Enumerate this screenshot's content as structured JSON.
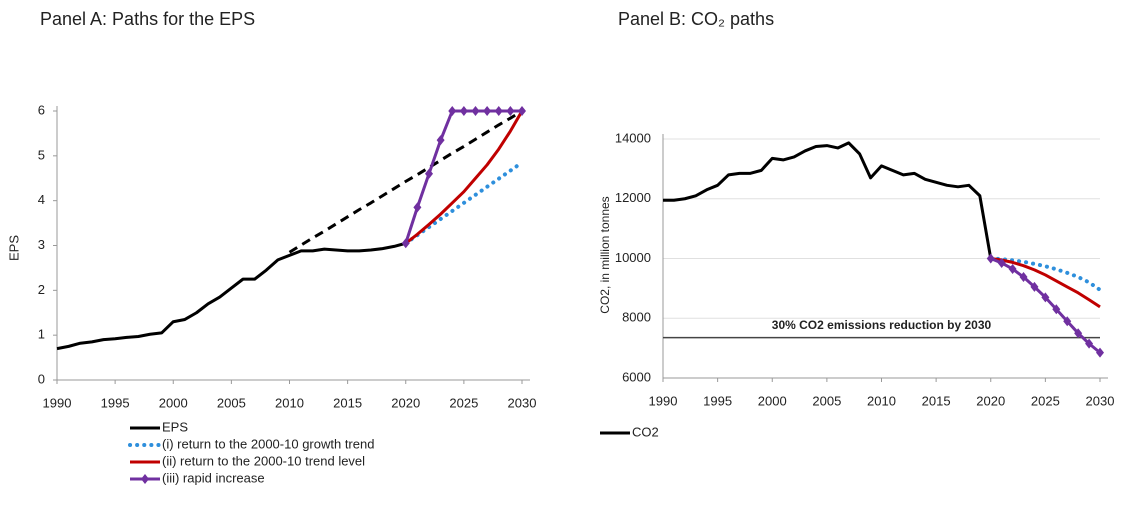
{
  "chart_data": [
    {
      "type": "line",
      "title": "Panel A: Paths for the EPS",
      "ylabel": "EPS",
      "grid": false,
      "legend": "below",
      "x": [
        1990,
        1991,
        1992,
        1993,
        1994,
        1995,
        1996,
        1997,
        1998,
        1999,
        2000,
        2001,
        2002,
        2003,
        2004,
        2005,
        2006,
        2007,
        2008,
        2009,
        2010,
        2011,
        2012,
        2013,
        2014,
        2015,
        2016,
        2017,
        2018,
        2019,
        2020,
        2021,
        2022,
        2023,
        2024,
        2025,
        2026,
        2027,
        2028,
        2029,
        2030
      ],
      "xlim": [
        1990,
        2030
      ],
      "xticks": [
        1990,
        1995,
        2000,
        2005,
        2010,
        2015,
        2020,
        2025,
        2030
      ],
      "ylim": [
        0,
        6
      ],
      "yticks": [
        0,
        1,
        2,
        3,
        4,
        5,
        6
      ],
      "series": [
        {
          "name": "EPS",
          "color": "#000000",
          "dash": "solid",
          "values": [
            0.7,
            0.75,
            0.82,
            0.85,
            0.9,
            0.92,
            0.95,
            0.97,
            1.02,
            1.05,
            1.3,
            1.35,
            1.5,
            1.7,
            1.85,
            2.05,
            2.25,
            2.25,
            2.45,
            2.68,
            2.78,
            2.88,
            2.88,
            2.92,
            2.9,
            2.88,
            2.88,
            2.9,
            2.93,
            2.98,
            3.05,
            null,
            null,
            null,
            null,
            null,
            null,
            null,
            null,
            null,
            null
          ]
        },
        {
          "color": "#000000",
          "dash": "dashed",
          "values": [
            null,
            null,
            null,
            null,
            null,
            null,
            null,
            null,
            null,
            null,
            null,
            null,
            null,
            null,
            null,
            null,
            null,
            null,
            null,
            null,
            2.85,
            3.01,
            3.17,
            3.32,
            3.48,
            3.64,
            3.8,
            3.95,
            4.11,
            4.27,
            4.43,
            4.58,
            4.74,
            4.9,
            5.06,
            5.21,
            5.37,
            5.53,
            5.69,
            5.84,
            6.0
          ]
        },
        {
          "name": "(i) return to the 2000-10 growth trend",
          "color": "#2e8fdc",
          "dash": "dotted",
          "values": [
            null,
            null,
            null,
            null,
            null,
            null,
            null,
            null,
            null,
            null,
            null,
            null,
            null,
            null,
            null,
            null,
            null,
            null,
            null,
            null,
            null,
            null,
            null,
            null,
            null,
            null,
            null,
            null,
            null,
            null,
            3.05,
            3.23,
            3.41,
            3.59,
            3.77,
            3.95,
            4.13,
            4.31,
            4.49,
            4.67,
            4.85
          ]
        },
        {
          "name": "(ii) return to the 2000-10 trend level",
          "color": "#c00000",
          "dash": "solid",
          "values": [
            null,
            null,
            null,
            null,
            null,
            null,
            null,
            null,
            null,
            null,
            null,
            null,
            null,
            null,
            null,
            null,
            null,
            null,
            null,
            null,
            null,
            null,
            null,
            null,
            null,
            null,
            null,
            null,
            null,
            null,
            3.05,
            3.25,
            3.47,
            3.7,
            3.95,
            4.2,
            4.5,
            4.8,
            5.15,
            5.55,
            6.0
          ]
        },
        {
          "name": "(iii) rapid increase",
          "color": "#7030a0",
          "dash": "solid",
          "marker": "diamond",
          "values": [
            null,
            null,
            null,
            null,
            null,
            null,
            null,
            null,
            null,
            null,
            null,
            null,
            null,
            null,
            null,
            null,
            null,
            null,
            null,
            null,
            null,
            null,
            null,
            null,
            null,
            null,
            null,
            null,
            null,
            null,
            3.05,
            3.85,
            4.6,
            5.35,
            6.0,
            6.0,
            6.0,
            6.0,
            6.0,
            6.0,
            6.0
          ]
        }
      ]
    },
    {
      "type": "line",
      "title": "Panel B: CO₂ paths",
      "ylabel": "CO2, in million tonnes",
      "grid": true,
      "legend": "below",
      "x": [
        1990,
        1991,
        1992,
        1993,
        1994,
        1995,
        1996,
        1997,
        1998,
        1999,
        2000,
        2001,
        2002,
        2003,
        2004,
        2005,
        2006,
        2007,
        2008,
        2009,
        2010,
        2011,
        2012,
        2013,
        2014,
        2015,
        2016,
        2017,
        2018,
        2019,
        2020,
        2021,
        2022,
        2023,
        2024,
        2025,
        2026,
        2027,
        2028,
        2029,
        2030
      ],
      "xlim": [
        1990,
        2030
      ],
      "xticks": [
        1990,
        1995,
        2000,
        2005,
        2010,
        2015,
        2020,
        2025,
        2030
      ],
      "ylim": [
        6000,
        14000
      ],
      "yticks": [
        6000,
        8000,
        10000,
        12000,
        14000
      ],
      "hline": {
        "value": 7350,
        "label": "30% CO2 emissions reduction by 2030"
      },
      "series": [
        {
          "name": "CO2",
          "color": "#000000",
          "dash": "solid",
          "values": [
            11950,
            11950,
            12000,
            12100,
            12300,
            12450,
            12800,
            12850,
            12850,
            12950,
            13350,
            13300,
            13400,
            13600,
            13750,
            13780,
            13700,
            13870,
            13500,
            12700,
            13100,
            12950,
            12800,
            12850,
            12650,
            12550,
            12450,
            12400,
            12450,
            12100,
            10000,
            null,
            null,
            null,
            null,
            null,
            null,
            null,
            null,
            null,
            null
          ]
        },
        {
          "color": "#2e8fdc",
          "dash": "dotted",
          "values": [
            null,
            null,
            null,
            null,
            null,
            null,
            null,
            null,
            null,
            null,
            null,
            null,
            null,
            null,
            null,
            null,
            null,
            null,
            null,
            null,
            null,
            null,
            null,
            null,
            null,
            null,
            null,
            null,
            null,
            null,
            10000,
            9980,
            9940,
            9890,
            9820,
            9740,
            9640,
            9520,
            9380,
            9200,
            8950
          ]
        },
        {
          "color": "#c00000",
          "dash": "solid",
          "values": [
            null,
            null,
            null,
            null,
            null,
            null,
            null,
            null,
            null,
            null,
            null,
            null,
            null,
            null,
            null,
            null,
            null,
            null,
            null,
            null,
            null,
            null,
            null,
            null,
            null,
            null,
            null,
            null,
            null,
            null,
            10000,
            9950,
            9870,
            9760,
            9620,
            9450,
            9250,
            9050,
            8850,
            8620,
            8380
          ]
        },
        {
          "color": "#7030a0",
          "dash": "solid",
          "marker": "diamond",
          "values": [
            null,
            null,
            null,
            null,
            null,
            null,
            null,
            null,
            null,
            null,
            null,
            null,
            null,
            null,
            null,
            null,
            null,
            null,
            null,
            null,
            null,
            null,
            null,
            null,
            null,
            null,
            null,
            null,
            null,
            null,
            10000,
            9850,
            9650,
            9380,
            9050,
            8700,
            8300,
            7900,
            7500,
            7150,
            6850
          ]
        }
      ]
    }
  ]
}
